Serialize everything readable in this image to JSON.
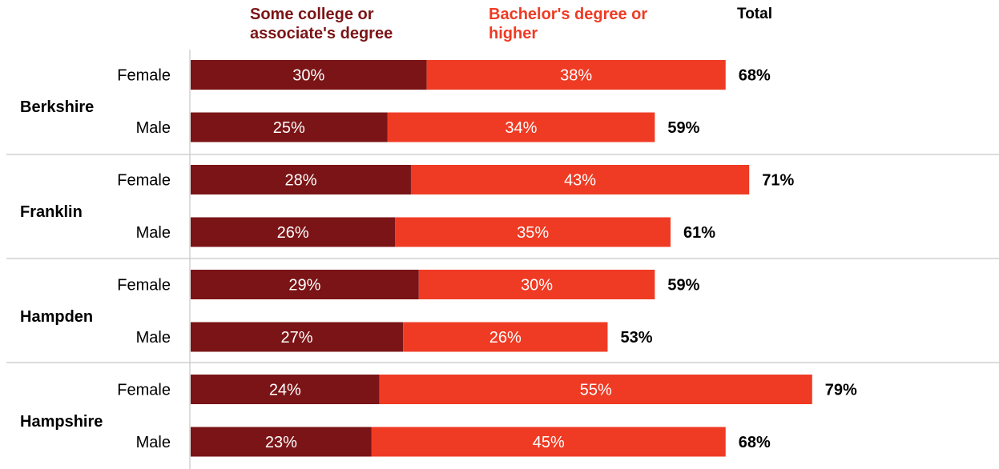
{
  "chart_data": {
    "type": "bar",
    "orientation": "horizontal",
    "stacked": true,
    "series": [
      {
        "name": "Some college or associate's degree",
        "color": "#7b1416",
        "values": [
          30,
          25,
          28,
          26,
          29,
          27,
          24,
          23
        ]
      },
      {
        "name": "Bachelor's degree or higher",
        "color": "#ef3b24",
        "values": [
          38,
          34,
          43,
          35,
          30,
          26,
          55,
          45
        ]
      }
    ],
    "totals_header": "Total",
    "totals": [
      68,
      59,
      71,
      61,
      59,
      53,
      79,
      68
    ],
    "value_format": "%",
    "groups": [
      {
        "name": "Berkshire",
        "rows": [
          "Female",
          "Male"
        ]
      },
      {
        "name": "Franklin",
        "rows": [
          "Female",
          "Male"
        ]
      },
      {
        "name": "Hampden",
        "rows": [
          "Female",
          "Male"
        ]
      },
      {
        "name": "Hampshire",
        "rows": [
          "Female",
          "Male"
        ]
      }
    ],
    "legend_position": "top",
    "grid": false
  }
}
